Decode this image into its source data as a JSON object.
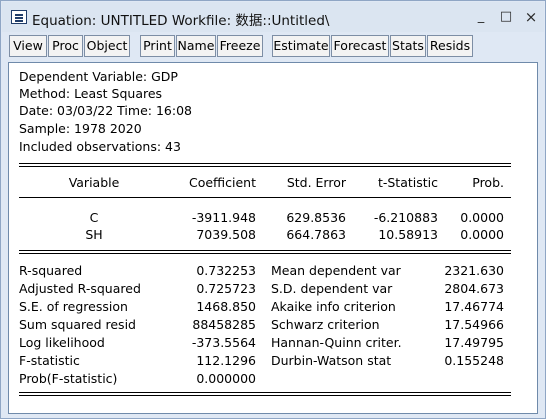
{
  "window": {
    "title": "Equation: UNTITLED   Workfile: 数据::Untitled\\",
    "minimize": "_",
    "maximize": "□",
    "close": "×"
  },
  "toolbar": [
    {
      "label": "View"
    },
    {
      "label": "Proc"
    },
    {
      "label": "Object"
    },
    {
      "label": "Print"
    },
    {
      "label": "Name"
    },
    {
      "label": "Freeze"
    },
    {
      "label": "Estimate"
    },
    {
      "label": "Forecast"
    },
    {
      "label": "Stats"
    },
    {
      "label": "Resids"
    }
  ],
  "header": {
    "dependent": "Dependent Variable: GDP",
    "method": "Method: Least Squares",
    "date": "Date: 03/03/22   Time: 16:08",
    "sample": "Sample: 1978 2020",
    "observations": "Included observations: 43"
  },
  "coef_table": {
    "columns": [
      "Variable",
      "Coefficient",
      "Std. Error",
      "t-Statistic",
      "Prob."
    ],
    "rows": [
      [
        "C",
        "-3911.948",
        "629.8536",
        "-6.210883",
        "0.0000"
      ],
      [
        "SH",
        "7039.508",
        "664.7863",
        "10.58913",
        "0.0000"
      ]
    ]
  },
  "stats": {
    "left": [
      [
        "R-squared",
        "0.732253"
      ],
      [
        "Adjusted R-squared",
        "0.725723"
      ],
      [
        "S.E. of regression",
        "1468.850"
      ],
      [
        "Sum squared resid",
        "88458285"
      ],
      [
        "Log likelihood",
        "-373.5564"
      ],
      [
        "F-statistic",
        "112.1296"
      ],
      [
        "Prob(F-statistic)",
        "0.000000"
      ]
    ],
    "right": [
      [
        "Mean dependent var",
        "2321.630"
      ],
      [
        "S.D. dependent var",
        "2804.673"
      ],
      [
        "Akaike info criterion",
        "17.46774"
      ],
      [
        "Schwarz criterion",
        "17.54966"
      ],
      [
        "Hannan-Quinn criter.",
        "17.49795"
      ],
      [
        "Durbin-Watson stat",
        "0.155248"
      ]
    ]
  }
}
